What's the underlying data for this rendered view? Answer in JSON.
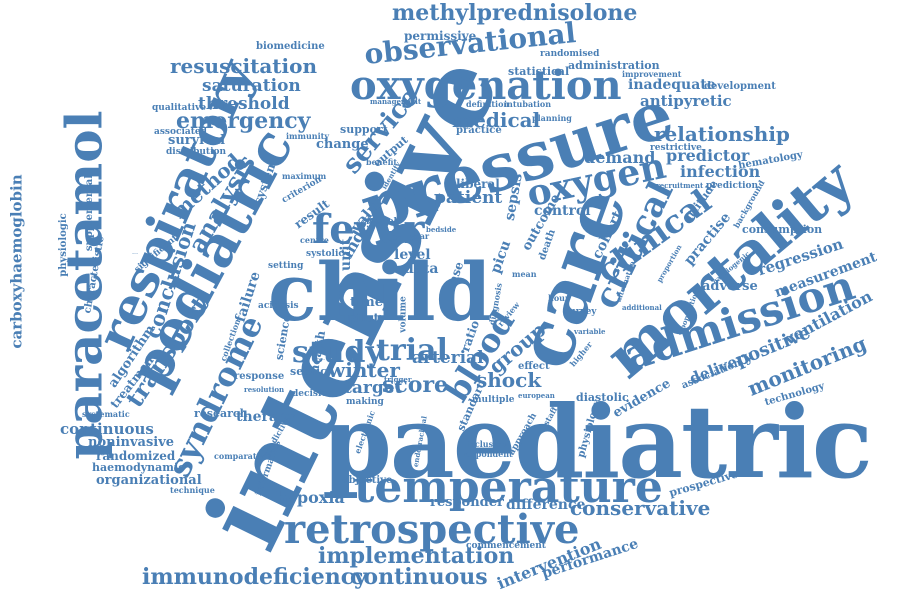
{
  "accent_color": "#4a7fb5",
  "words": [
    "paediatric",
    "intensive",
    "child",
    "care",
    "pressure",
    "mortality",
    "oxygenation",
    "respiratory",
    "paracetamol",
    "pediatric",
    "temperature",
    "retrospective",
    "fever",
    "admission",
    "critical",
    "oxygen",
    "observational",
    "methylprednisolone",
    "implementation",
    "immunodeficiency",
    "continuous",
    "continuous",
    "conservative",
    "syndrome",
    "transport",
    "study",
    "trial",
    "clinical",
    "blood",
    "shock",
    "winter",
    "score",
    "group",
    "service",
    "analysis",
    "resuscitation",
    "saturation",
    "threshold",
    "emergency",
    "method",
    "conclusion",
    "medical",
    "relationship",
    "demand",
    "predictor",
    "infection",
    "patient",
    "monitoring",
    "positive",
    "regression",
    "ventilation",
    "measurement",
    "surge",
    "target",
    "arterial",
    "hypoxia",
    "therapy",
    "research",
    "difference",
    "intervention",
    "performance",
    "carboxyhaemoglobin",
    "survival",
    "permissive",
    "statistical",
    "administration",
    "inadequate",
    "antipyretic",
    "development",
    "consumption",
    "delivery",
    "adverse",
    "algorithm",
    "treatment",
    "failure",
    "system",
    "change",
    "support",
    "output",
    "practice",
    "liberal",
    "outcome",
    "control",
    "cohort",
    "attitude",
    "practise",
    "hematology",
    "prediction",
    "technology",
    "evidence",
    "association",
    "prospective",
    "standard",
    "responder",
    "organizational",
    "noninvasive",
    "randomized",
    "haemodynamic",
    "physiologic",
    "supplemental",
    "characteristic",
    "significant",
    "qualitative",
    "associated",
    "distribution",
    "biomedicine",
    "randomised",
    "improvement",
    "management",
    "definition",
    "intubation",
    "planning",
    "restrictive",
    "recruitment",
    "background",
    "index",
    "value",
    "model",
    "data",
    "level",
    "unit",
    "time",
    "volume",
    "pilot",
    "centre",
    "setting",
    "septic",
    "health",
    "science",
    "acidosis",
    "collection",
    "response",
    "resolution",
    "decision",
    "systematic",
    "comparative",
    "technique",
    "informatics",
    "objective",
    "predictive",
    "electronic",
    "endotracheal",
    "inclusion",
    "respondent",
    "commencement",
    "diastolic",
    "physiology",
    "survey",
    "effect",
    "european",
    "multiple",
    "making",
    "criterion",
    "maximum",
    "immunity",
    "benefit",
    "identify",
    "result",
    "case",
    "ratio",
    "sepsis",
    "death",
    "picu",
    "year",
    "systolic",
    "bedside",
    "diagnosis",
    "approach",
    "variable",
    "higher",
    "hour",
    "alternative",
    "mean",
    "staff",
    "additional",
    "proportion",
    "population",
    "cardiogenic",
    "trigger",
    "review",
    "recruitment",
    "significant"
  ]
}
